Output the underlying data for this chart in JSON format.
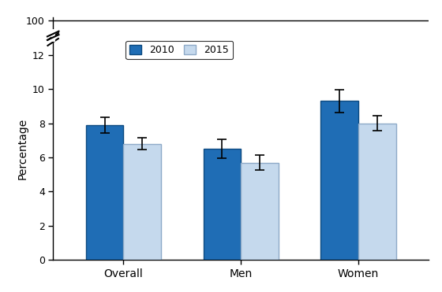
{
  "categories": [
    "Overall",
    "Men",
    "Women"
  ],
  "values_2010": [
    7.9,
    6.5,
    9.3
  ],
  "values_2015": [
    6.8,
    5.7,
    8.0
  ],
  "errors_2010": [
    0.45,
    0.55,
    0.65
  ],
  "errors_2015": [
    0.35,
    0.45,
    0.45
  ],
  "color_2010": "#1f6db5",
  "color_2015": "#c5d9ed",
  "edgecolor_2010": "#0d4a80",
  "edgecolor_2015": "#8eaac8",
  "ylabel": "Percentage",
  "legend_labels": [
    "2010",
    "2015"
  ],
  "main_yticks": [
    0,
    2,
    4,
    6,
    8,
    10,
    12
  ],
  "bar_width": 0.32,
  "background_color": "#ffffff"
}
